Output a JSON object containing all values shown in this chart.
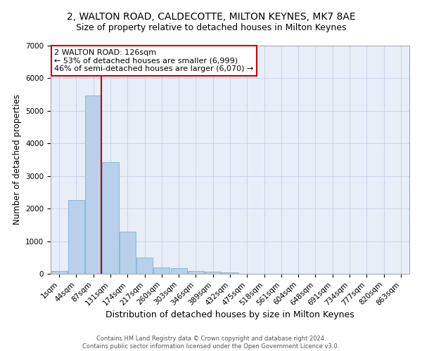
{
  "title1": "2, WALTON ROAD, CALDECOTTE, MILTON KEYNES, MK7 8AE",
  "title2": "Size of property relative to detached houses in Milton Keynes",
  "xlabel": "Distribution of detached houses by size in Milton Keynes",
  "ylabel": "Number of detached properties",
  "bin_labels": [
    "1sqm",
    "44sqm",
    "87sqm",
    "131sqm",
    "174sqm",
    "217sqm",
    "260sqm",
    "303sqm",
    "346sqm",
    "389sqm",
    "432sqm",
    "475sqm",
    "518sqm",
    "561sqm",
    "604sqm",
    "648sqm",
    "691sqm",
    "734sqm",
    "777sqm",
    "820sqm",
    "863sqm"
  ],
  "bar_heights": [
    80,
    2270,
    5480,
    3420,
    1290,
    490,
    185,
    170,
    95,
    65,
    40,
    0,
    0,
    0,
    0,
    0,
    0,
    0,
    0,
    0,
    0
  ],
  "bar_color": "#b8d0ea",
  "bar_edge_color": "#6aaad4",
  "grid_color": "#c8d4e8",
  "background_color": "#e8eef8",
  "vline_x": 2.45,
  "annotation_text": "2 WALTON ROAD: 126sqm\n← 53% of detached houses are smaller (6,999)\n46% of semi-detached houses are larger (6,070) →",
  "annotation_box_color": "#ffffff",
  "annotation_box_edge": "#cc0000",
  "vline_color": "#cc0000",
  "footer1": "Contains HM Land Registry data © Crown copyright and database right 2024.",
  "footer2": "Contains public sector information licensed under the Open Government Licence v3.0.",
  "ylim": [
    0,
    7000
  ],
  "title1_fontsize": 10,
  "title2_fontsize": 9,
  "xlabel_fontsize": 9,
  "ylabel_fontsize": 8.5,
  "tick_fontsize": 7.5,
  "annot_fontsize": 8,
  "footer_fontsize": 6
}
